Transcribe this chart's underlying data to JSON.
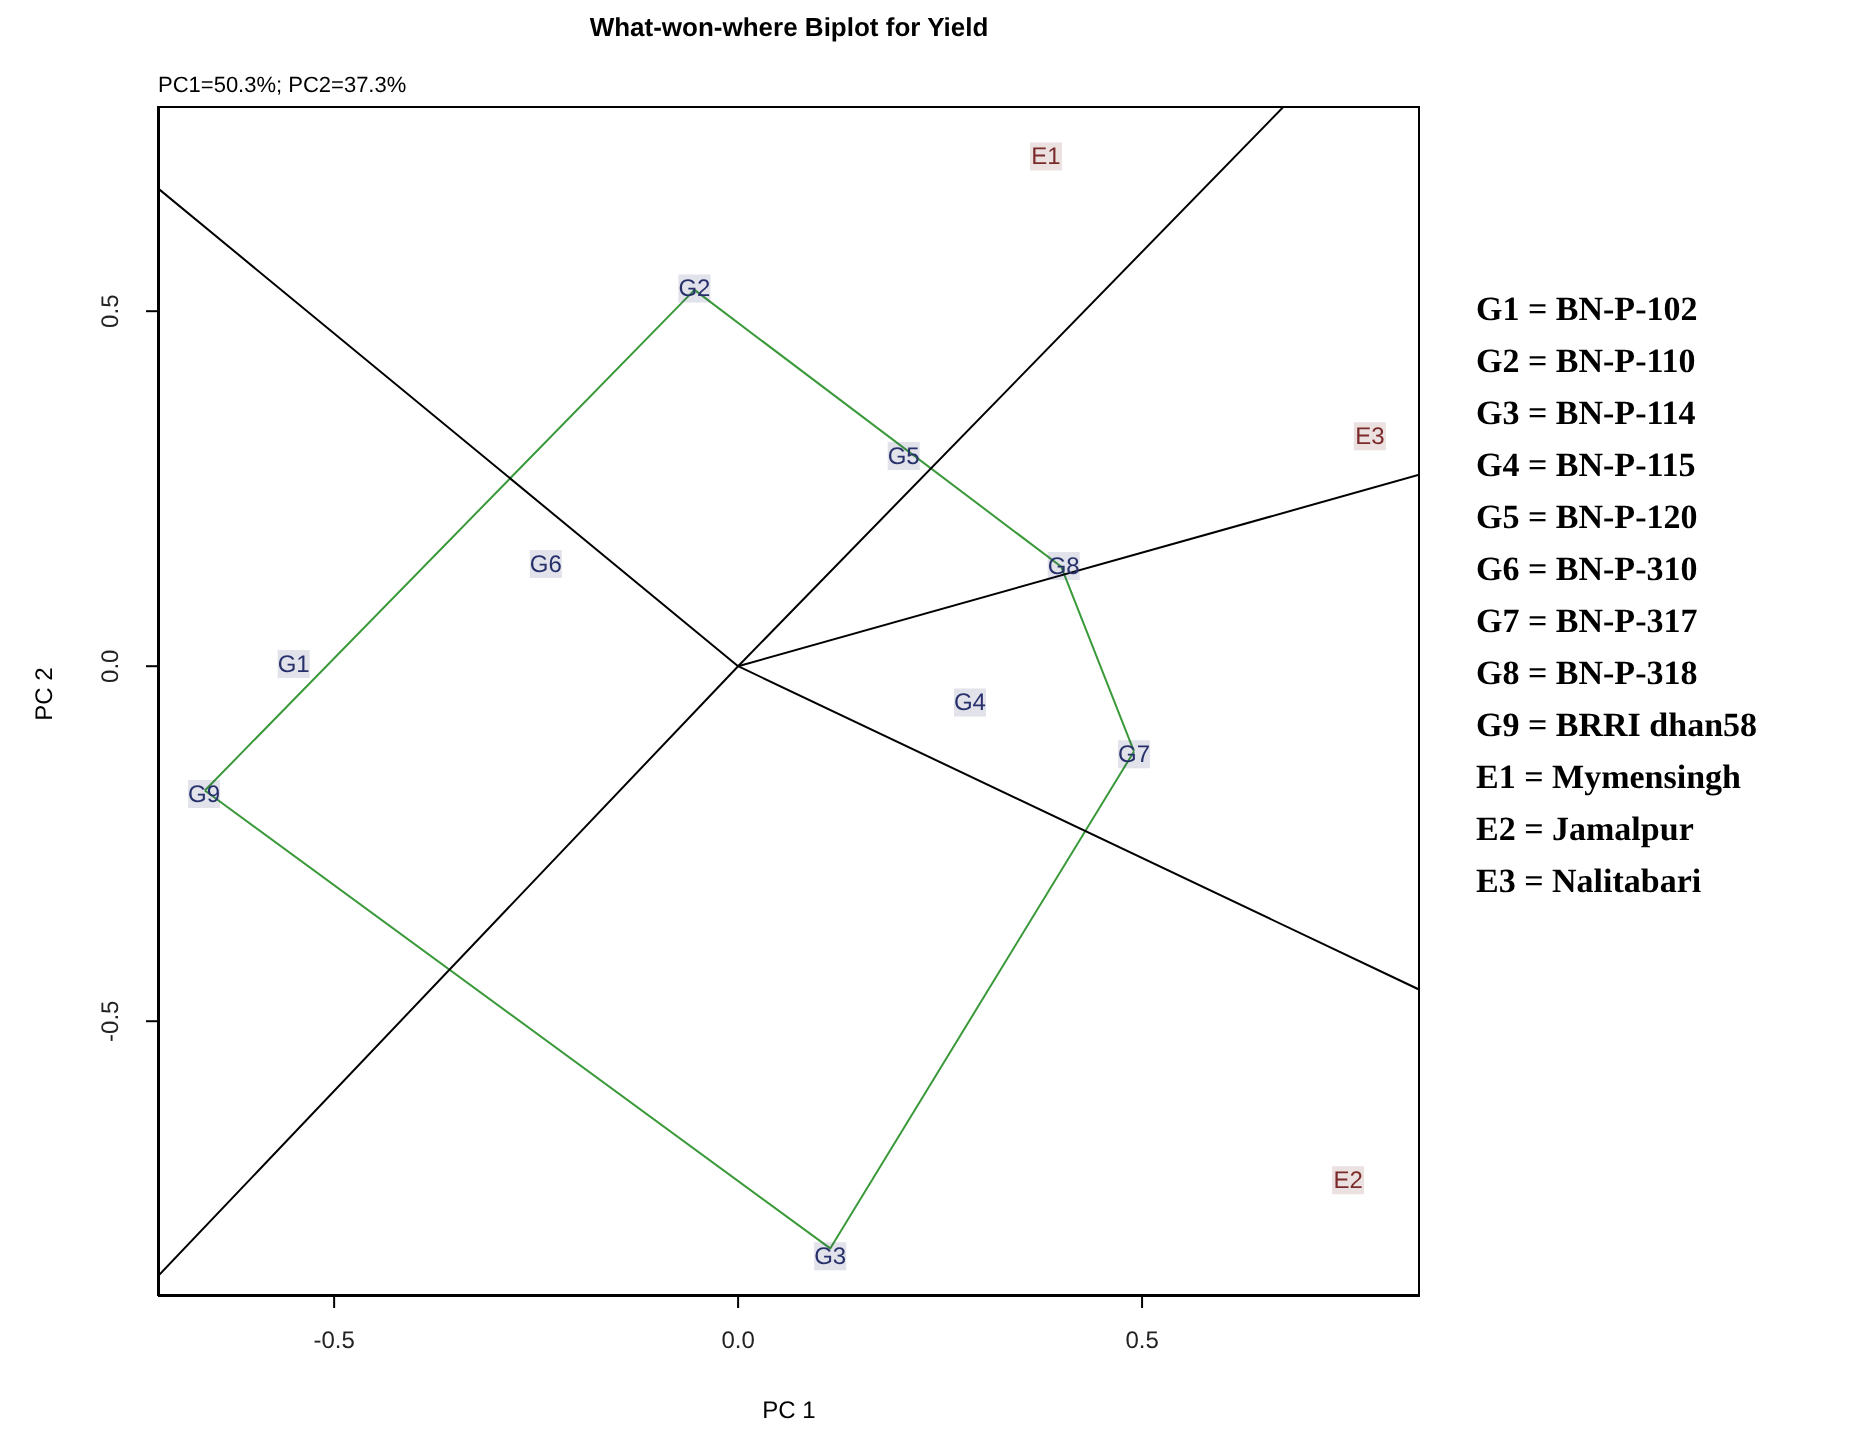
{
  "chart_data": {
    "type": "scatter",
    "title": "What-won-where Biplot for Yield",
    "subtitle": "PC1=50.3%; PC2=37.3%",
    "xlabel": "PC 1",
    "ylabel": "PC 2",
    "annotations": [
      "G1 = BN-P-102",
      "G2 = BN-P-110",
      "G3 = BN-P-114",
      "G4 = BN-P-115",
      "G5 = BN-P-120",
      "G6 = BN-P-310",
      "G7 = BN-P-317",
      "G8 = BN-P-318",
      "G9 = BRRI dhan58",
      "E1 = Mymensingh",
      "E2 = Jamalpur",
      "E3 = Nalitabari"
    ],
    "xlim": [
      -0.718,
      0.844
    ],
    "ylim": [
      -0.887,
      0.789
    ],
    "xticks": [
      -0.5,
      {
        "value": 0,
        "label": "0.0"
      },
      0.5
    ],
    "yticks": [
      -0.5,
      {
        "value": 0,
        "label": "0.0"
      },
      0.5
    ],
    "line_style": "solid",
    "series": [
      {
        "type": "line",
        "color": "#3a9a3a",
        "x": [
          -0.66,
          -0.054,
          0.4,
          0.49
        ],
        "values": [
          -0.175,
          0.53,
          0.14,
          -0.12
        ]
      },
      {
        "type": "line",
        "color": "#3a9a3a",
        "x": [
          -0.66,
          0.114,
          0.49
        ],
        "values": [
          -0.175,
          -0.82,
          -0.12
        ]
      },
      {
        "type": "line",
        "color": "#000000",
        "x": [
          -0.718,
          0,
          0.676
        ],
        "values": [
          -0.859,
          0,
          0.789
        ]
      },
      {
        "type": "line",
        "color": "#000000",
        "x": [
          -0.718,
          0,
          0.844
        ],
        "values": [
          0.673,
          0,
          -0.456
        ]
      },
      {
        "type": "line",
        "color": "#000000",
        "x": [
          0,
          0.844
        ],
        "values": [
          0,
          0.27
        ]
      },
      {
        "type": "scatter",
        "color": "#27306b",
        "x": [
          -0.55,
          -0.054,
          0.114,
          0.287,
          0.205,
          -0.238,
          0.49,
          0.403,
          -0.661
        ],
        "values": [
          0.003,
          0.532,
          -0.831,
          -0.051,
          0.296,
          0.144,
          -0.124,
          0.141,
          -0.18
        ],
        "value_labels": [
          "G1",
          "G2",
          "G3",
          "G4",
          "G5",
          "G6",
          "G7",
          "G8",
          "G9"
        ]
      },
      {
        "type": "scatter",
        "color": "#7b2a2a",
        "x": [
          0.381,
          0.755,
          0.782
        ],
        "values": [
          0.718,
          -0.724,
          0.324
        ],
        "value_labels": [
          "E1",
          "E2",
          "E3"
        ]
      }
    ]
  }
}
